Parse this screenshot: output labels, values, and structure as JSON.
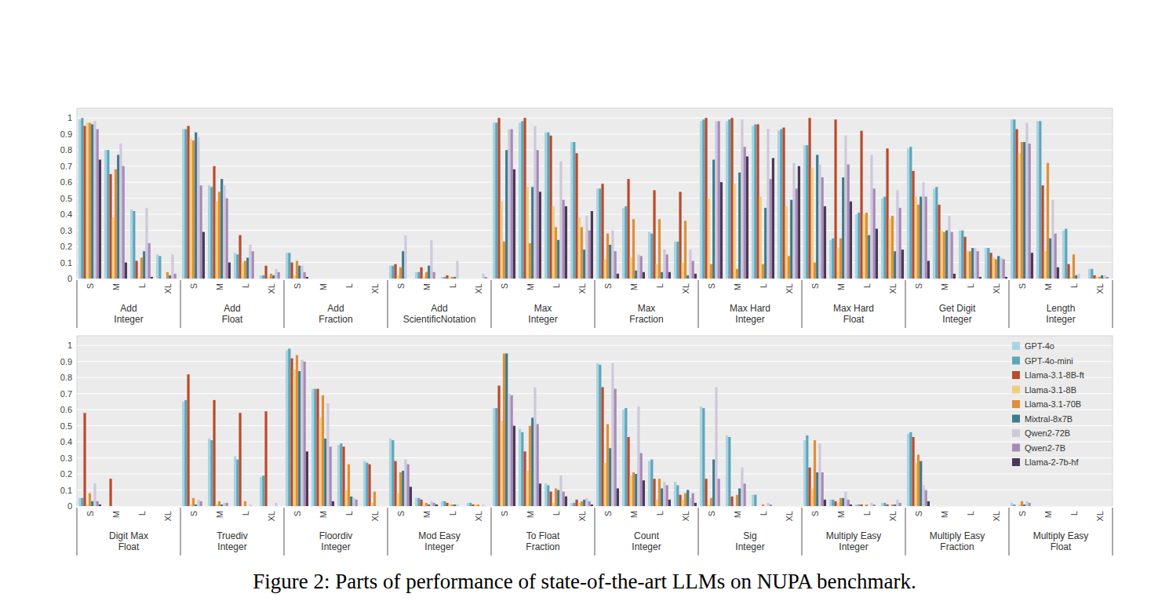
{
  "chart_data": {
    "type": "bar",
    "title": "Figure 2: Parts of performance of state-of-the-art LLMs on NUPA benchmark.",
    "groups": [
      "Add\nInteger",
      "Add\nFloat",
      "Add\nFraction",
      "Add\nScientificNotation",
      "Max\nInteger",
      "Max\nFraction",
      "Max Hard\nInteger",
      "Max Hard\nFloat",
      "Get Digit\nInteger",
      "Length\nInteger",
      "Digit Max\nFloat",
      "Truediv\nInteger",
      "Floordiv\nInteger",
      "Mod Easy\nInteger",
      "To Float\nFraction",
      "Count\nInteger",
      "Sig\nInteger",
      "Multiply Easy\nInteger",
      "Multiply Easy\nFraction",
      "Multiply Easy\nFloat"
    ],
    "categories": [
      "S",
      "M",
      "L",
      "XL",
      "S",
      "M",
      "L",
      "XL",
      "S",
      "M",
      "L",
      "XL",
      "S",
      "M",
      "L",
      "XL",
      "S",
      "M",
      "L",
      "XL",
      "S",
      "M",
      "L",
      "XL",
      "S",
      "M",
      "L",
      "XL",
      "S",
      "M",
      "L",
      "XL",
      "S",
      "M",
      "L",
      "XL",
      "S",
      "M",
      "L",
      "XL",
      "S",
      "M",
      "L",
      "XL",
      "S",
      "M",
      "L",
      "XL",
      "S",
      "M",
      "L",
      "XL",
      "S",
      "M",
      "L",
      "XL",
      "S",
      "M",
      "L",
      "XL",
      "S",
      "M",
      "L",
      "XL",
      "S",
      "M",
      "L",
      "XL",
      "S",
      "M",
      "L",
      "XL",
      "S",
      "M",
      "L",
      "XL",
      "S",
      "M",
      "L",
      "XL"
    ],
    "series": [
      {
        "name": "GPT-4o",
        "color": "#a9d4e2",
        "values": [
          0.99,
          0.8,
          0.43,
          0.15,
          0.93,
          0.58,
          0.16,
          0.02,
          0.16,
          0,
          0,
          0,
          0.08,
          0.04,
          0.01,
          0,
          0.97,
          0.97,
          0.91,
          0.85,
          0.56,
          0.44,
          0.29,
          0.23,
          0.98,
          0.98,
          0.95,
          0.92,
          0.83,
          0.24,
          0.4,
          0.5,
          0.81,
          0.56,
          0.3,
          0.19,
          0.99,
          0.98,
          0.3,
          0.06,
          0.05,
          0,
          0,
          0,
          0.65,
          0.42,
          0.31,
          0.18,
          0.97,
          0.73,
          0.38,
          0.28,
          0.42,
          0.05,
          0.03,
          0.02,
          0.61,
          0.48,
          0.14,
          0.02,
          0.89,
          0.6,
          0.28,
          0.15,
          0.62,
          0.44,
          0.07,
          0,
          0.41,
          0.04,
          0.01,
          0.02,
          0.45,
          0,
          0,
          0,
          0.02,
          0,
          0,
          0
        ]
      },
      {
        "name": "GPT-4o-mini",
        "color": "#5ea5b9",
        "values": [
          1.0,
          0.8,
          0.42,
          0.14,
          0.93,
          0.57,
          0.15,
          0.02,
          0.16,
          0,
          0,
          0,
          0.08,
          0.04,
          0.01,
          0,
          0.97,
          0.98,
          0.91,
          0.85,
          0.56,
          0.45,
          0.28,
          0.23,
          0.99,
          0.99,
          0.96,
          0.93,
          0.83,
          0.25,
          0.41,
          0.51,
          0.82,
          0.57,
          0.3,
          0.19,
          0.99,
          0.98,
          0.31,
          0.06,
          0.05,
          0,
          0,
          0,
          0.66,
          0.41,
          0.29,
          0.19,
          0.98,
          0.73,
          0.39,
          0.27,
          0.41,
          0.05,
          0.03,
          0.02,
          0.61,
          0.46,
          0.13,
          0.02,
          0.88,
          0.61,
          0.29,
          0.13,
          0.61,
          0.43,
          0.07,
          0,
          0.44,
          0.04,
          0.01,
          0.02,
          0.46,
          0,
          0,
          0,
          0.01,
          0,
          0,
          0
        ]
      },
      {
        "name": "Llama-3.1-8B-ft",
        "color": "#bb4a2b",
        "values": [
          0.95,
          0.65,
          0.11,
          0,
          0.95,
          0.7,
          0.27,
          0.08,
          0.1,
          0,
          0,
          0,
          0.09,
          0.07,
          0.02,
          0,
          1.0,
          1.0,
          0.89,
          0.78,
          0.59,
          0.62,
          0.55,
          0.54,
          1.0,
          1.0,
          0.96,
          0.94,
          1.0,
          0.99,
          0.92,
          0.81,
          0.67,
          0.46,
          0.26,
          0.16,
          0.93,
          0.58,
          0.09,
          0.02,
          0.58,
          0.17,
          0,
          0,
          0.82,
          0.66,
          0.58,
          0.59,
          0.92,
          0.73,
          0.37,
          0.26,
          0.28,
          0.04,
          0.02,
          0.01,
          0.75,
          0.34,
          0.09,
          0.04,
          0.74,
          0.43,
          0.17,
          0.07,
          0.17,
          0.06,
          0,
          0,
          0.24,
          0.03,
          0.01,
          0.01,
          0.43,
          0,
          0,
          0,
          0,
          0,
          0,
          0
        ]
      },
      {
        "name": "Llama-3.1-8B",
        "color": "#edcf80",
        "values": [
          0.97,
          0.38,
          0.01,
          0,
          0.87,
          0.48,
          0.1,
          0.01,
          0.02,
          0,
          0,
          0,
          0.02,
          0.01,
          0.01,
          0,
          0.48,
          0.57,
          0.45,
          0.38,
          0.12,
          0.13,
          0.09,
          0.1,
          0.5,
          0.59,
          0.51,
          0.45,
          0.69,
          0.19,
          0.4,
          0.37,
          0.51,
          0.3,
          0.17,
          0.13,
          0.78,
          0.17,
          0.01,
          0.01,
          0.01,
          0,
          0,
          0,
          0.01,
          0.01,
          0,
          0,
          0.85,
          0.55,
          0.1,
          0.02,
          0.08,
          0.01,
          0.01,
          0.01,
          0.53,
          0.22,
          0.02,
          0.02,
          0.27,
          0.19,
          0.04,
          0.04,
          0.01,
          0,
          0,
          0,
          0.11,
          0.02,
          0,
          0,
          0.27,
          0,
          0,
          0,
          0.01,
          0,
          0,
          0
        ]
      },
      {
        "name": "Llama-3.1-70B",
        "color": "#dd9038",
        "values": [
          0.97,
          0.68,
          0.13,
          0.04,
          0.86,
          0.54,
          0.11,
          0.03,
          0.11,
          0,
          0,
          0,
          0.07,
          0.04,
          0.01,
          0,
          0.23,
          0.22,
          0.32,
          0.32,
          0.28,
          0.37,
          0.37,
          0.36,
          0.09,
          0.06,
          0.09,
          0.14,
          0.1,
          0.25,
          0.41,
          0.39,
          0.46,
          0.29,
          0.17,
          0.12,
          0.85,
          0.72,
          0.15,
          0.01,
          0.08,
          0,
          0,
          0,
          0.05,
          0.03,
          0.03,
          0,
          0.94,
          0.69,
          0.26,
          0.09,
          0.21,
          0.02,
          0.01,
          0.01,
          0.95,
          0.5,
          0.11,
          0.03,
          0.51,
          0.21,
          0.17,
          0.08,
          0.05,
          0.07,
          0.01,
          0,
          0.41,
          0.05,
          0.01,
          0.01,
          0.32,
          0,
          0,
          0,
          0.03,
          0,
          0,
          0
        ]
      },
      {
        "name": "Mixtral-8x7B",
        "color": "#3d7a8e",
        "values": [
          0.96,
          0.77,
          0.17,
          0.02,
          0.91,
          0.62,
          0.13,
          0.02,
          0.08,
          0,
          0,
          0,
          0.17,
          0.08,
          0.01,
          0,
          0.8,
          0.57,
          0.24,
          0.18,
          0.21,
          0.05,
          0.04,
          0.02,
          0.74,
          0.66,
          0.44,
          0.49,
          0.77,
          0.63,
          0.27,
          0.17,
          0.51,
          0.3,
          0.19,
          0.14,
          0.85,
          0.25,
          0.02,
          0.02,
          0.03,
          0,
          0,
          0,
          0.01,
          0.01,
          0,
          0,
          0.84,
          0.42,
          0.06,
          0,
          0.22,
          0.01,
          0.01,
          0,
          0.95,
          0.55,
          0.1,
          0.04,
          0.36,
          0.2,
          0.11,
          0.1,
          0.29,
          0.11,
          0,
          0,
          0.21,
          0.05,
          0,
          0.01,
          0.28,
          0,
          0,
          0,
          0.01,
          0,
          0,
          0
        ]
      },
      {
        "name": "Qwen2-72B",
        "color": "#cfc8dd",
        "values": [
          0.98,
          0.84,
          0.44,
          0.15,
          0.88,
          0.58,
          0.21,
          0.06,
          0.08,
          0,
          0,
          0,
          0.27,
          0.24,
          0.11,
          0.03,
          0.93,
          0.95,
          0.73,
          0.39,
          0.3,
          0.15,
          0.18,
          0.18,
          0.98,
          0.99,
          0.93,
          0.72,
          0.71,
          0.89,
          0.77,
          0.55,
          0.6,
          0.39,
          0.19,
          0.13,
          0.97,
          0.49,
          0.03,
          0.02,
          0.14,
          0,
          0,
          0,
          0.04,
          0.02,
          0.01,
          0.02,
          0.91,
          0.64,
          0.05,
          0,
          0.29,
          0.03,
          0.01,
          0.01,
          0.7,
          0.74,
          0.19,
          0.05,
          0.89,
          0.62,
          0.15,
          0.05,
          0.74,
          0.24,
          0.02,
          0,
          0.39,
          0.09,
          0.02,
          0.04,
          0.13,
          0,
          0,
          0,
          0.03,
          0,
          0,
          0
        ]
      },
      {
        "name": "Qwen2-7B",
        "color": "#a68bb6",
        "values": [
          0.93,
          0.7,
          0.22,
          0.03,
          0.58,
          0.5,
          0.17,
          0.04,
          0.04,
          0,
          0,
          0,
          0,
          0.04,
          0,
          0.01,
          0.93,
          0.8,
          0.49,
          0.3,
          0.17,
          0.14,
          0.15,
          0.11,
          0.98,
          0.82,
          0.62,
          0.56,
          0.63,
          0.71,
          0.56,
          0.44,
          0.51,
          0.29,
          0.17,
          0.12,
          0.84,
          0.28,
          0,
          0.01,
          0.03,
          0,
          0,
          0,
          0.03,
          0.02,
          0,
          0,
          0.9,
          0.37,
          0.04,
          0,
          0.26,
          0.02,
          0,
          0,
          0.69,
          0.51,
          0.09,
          0.03,
          0.73,
          0.33,
          0.13,
          0.08,
          0.17,
          0.14,
          0.01,
          0,
          0.21,
          0.04,
          0.01,
          0.02,
          0.1,
          0,
          0,
          0,
          0.02,
          0,
          0,
          0
        ]
      },
      {
        "name": "Llama-2-7b-hf",
        "color": "#4b3958",
        "values": [
          0.74,
          0.1,
          0.01,
          0,
          0.29,
          0.1,
          0,
          0,
          0.01,
          0,
          0,
          0,
          0,
          0,
          0,
          0,
          0.68,
          0.54,
          0.45,
          0.42,
          0.03,
          0.04,
          0.04,
          0.03,
          0.6,
          0.76,
          0.75,
          0.7,
          0.45,
          0.48,
          0.31,
          0.18,
          0.11,
          0.03,
          0.01,
          0.01,
          0.16,
          0.07,
          0,
          0,
          0.01,
          0,
          0,
          0,
          0,
          0,
          0,
          0,
          0.34,
          0.03,
          0,
          0,
          0.12,
          0.01,
          0,
          0,
          0.5,
          0.14,
          0.06,
          0.01,
          0.11,
          0.16,
          0.04,
          0.02,
          0,
          0,
          0,
          0,
          0.04,
          0.01,
          0,
          0,
          0.03,
          0,
          0,
          0,
          0,
          0,
          0,
          0
        ]
      }
    ],
    "ylim": [
      0,
      1.06
    ],
    "yticks": [
      0,
      0.1,
      0.2,
      0.3,
      0.4,
      0.5,
      0.6,
      0.7,
      0.8,
      0.9,
      1
    ],
    "grid": true,
    "legend": "top-right"
  }
}
